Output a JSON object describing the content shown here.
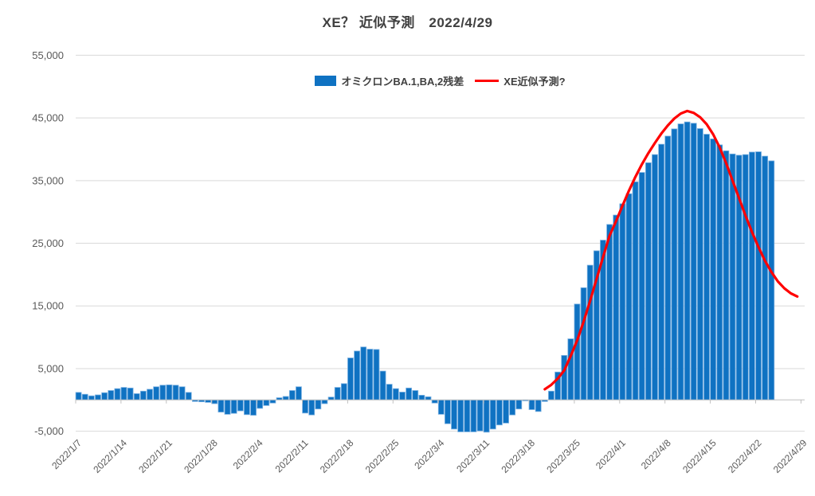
{
  "title": "XE？ 近似予測　2022/4/29",
  "legend": {
    "bar_label": "オミクロンBA.1,BA,2残差",
    "line_label": "XE近似予測?"
  },
  "colors": {
    "bar_fill": "#0F72C2",
    "bar_edge": "#7EB3E3",
    "forecast_line": "#FF0000",
    "gridline": "#D9D9D9",
    "axis_line": "#BFBFBF",
    "axis_text": "#595959",
    "title_text": "#404040",
    "background": "#FFFFFF"
  },
  "chart_data": {
    "type": "combo-bar-line",
    "grid": true,
    "legend_position": "top-center",
    "ylim": [
      -5000,
      55000
    ],
    "ytick_step": 10000,
    "y_ticks": {
      "values": [
        55000,
        45000,
        35000,
        25000,
        15000,
        5000,
        -5000
      ],
      "labels": [
        "55,000",
        "45,000",
        "35,000",
        "25,000",
        "15,000",
        "5,000",
        "-5,000"
      ]
    },
    "x_tick_every": 7,
    "x_tick_labels": [
      "2022/1/7",
      "2022/1/14",
      "2022/1/21",
      "2022/1/28",
      "2022/2/4",
      "2022/2/11",
      "2022/2/18",
      "2022/2/25",
      "2022/3/4",
      "2022/3/11",
      "2022/3/18",
      "2022/3/25",
      "2022/4/1",
      "2022/4/8",
      "2022/4/15",
      "2022/4/22",
      "2022/4/29"
    ],
    "categories": [
      "2022/1/7",
      "2022/1/8",
      "2022/1/9",
      "2022/1/10",
      "2022/1/11",
      "2022/1/12",
      "2022/1/13",
      "2022/1/14",
      "2022/1/15",
      "2022/1/16",
      "2022/1/17",
      "2022/1/18",
      "2022/1/19",
      "2022/1/20",
      "2022/1/21",
      "2022/1/22",
      "2022/1/23",
      "2022/1/24",
      "2022/1/25",
      "2022/1/26",
      "2022/1/27",
      "2022/1/28",
      "2022/1/29",
      "2022/1/30",
      "2022/1/31",
      "2022/2/1",
      "2022/2/2",
      "2022/2/3",
      "2022/2/4",
      "2022/2/5",
      "2022/2/6",
      "2022/2/7",
      "2022/2/8",
      "2022/2/9",
      "2022/2/10",
      "2022/2/11",
      "2022/2/12",
      "2022/2/13",
      "2022/2/14",
      "2022/2/15",
      "2022/2/16",
      "2022/2/17",
      "2022/2/18",
      "2022/2/19",
      "2022/2/20",
      "2022/2/21",
      "2022/2/22",
      "2022/2/23",
      "2022/2/24",
      "2022/2/25",
      "2022/2/26",
      "2022/2/27",
      "2022/2/28",
      "2022/3/1",
      "2022/3/2",
      "2022/3/3",
      "2022/3/4",
      "2022/3/5",
      "2022/3/6",
      "2022/3/7",
      "2022/3/8",
      "2022/3/9",
      "2022/3/10",
      "2022/3/11",
      "2022/3/12",
      "2022/3/13",
      "2022/3/14",
      "2022/3/15",
      "2022/3/16",
      "2022/3/17",
      "2022/3/18",
      "2022/3/19",
      "2022/3/20",
      "2022/3/21",
      "2022/3/22",
      "2022/3/23",
      "2022/3/24",
      "2022/3/25",
      "2022/3/26",
      "2022/3/27",
      "2022/3/28",
      "2022/3/29",
      "2022/3/30",
      "2022/3/31",
      "2022/4/1",
      "2022/4/2",
      "2022/4/3",
      "2022/4/4",
      "2022/4/5",
      "2022/4/6",
      "2022/4/7",
      "2022/4/8",
      "2022/4/9",
      "2022/4/10",
      "2022/4/11",
      "2022/4/12",
      "2022/4/13",
      "2022/4/14",
      "2022/4/15",
      "2022/4/16",
      "2022/4/17",
      "2022/4/18",
      "2022/4/19",
      "2022/4/20",
      "2022/4/21",
      "2022/4/22",
      "2022/4/23",
      "2022/4/24",
      "2022/4/25",
      "2022/4/26",
      "2022/4/27",
      "2022/4/28",
      "2022/4/29"
    ],
    "series": [
      {
        "name": "オミクロンBA.1,BA,2残差",
        "type": "bar",
        "color": "#0F72C2",
        "edge_color": "#7EB3E3",
        "start_index": 0,
        "values": [
          1200,
          900,
          650,
          800,
          1150,
          1500,
          1800,
          2000,
          1900,
          1000,
          1400,
          1700,
          2100,
          2350,
          2400,
          2350,
          2100,
          1200,
          -250,
          -300,
          -400,
          -600,
          -1950,
          -2300,
          -2150,
          -1750,
          -2350,
          -2450,
          -1350,
          -900,
          -500,
          350,
          550,
          1500,
          2100,
          -2100,
          -2400,
          -1450,
          -600,
          450,
          2000,
          2600,
          6700,
          7800,
          8450,
          8100,
          8050,
          4600,
          2500,
          1800,
          1250,
          1900,
          1500,
          750,
          500,
          -500,
          -2300,
          -3800,
          -4650,
          -5100,
          -5100,
          -5100,
          -4950,
          -5150,
          -4650,
          -4000,
          -3700,
          -2400,
          -1450,
          -150,
          -1550,
          -1850,
          -250,
          1400,
          4450,
          7100,
          9750,
          15300,
          17900,
          21500,
          23800,
          25500,
          28000,
          29500,
          31300,
          32900,
          34800,
          36300,
          37850,
          39150,
          40800,
          42100,
          43250,
          44050,
          44360,
          44150,
          43300,
          42400,
          41650,
          40700,
          39750,
          39250,
          39050,
          39150,
          39550,
          39600,
          38900,
          38150,
          null,
          null,
          null,
          null,
          null
        ]
      },
      {
        "name": "XE近似予測?",
        "type": "line",
        "color": "#FF0000",
        "stroke_width": 3.2,
        "start_index": 72,
        "values": [
          1700,
          2400,
          3400,
          4700,
          7000,
          9500,
          12500,
          15800,
          19300,
          22800,
          26200,
          28500,
          31000,
          33400,
          35600,
          37600,
          39400,
          41000,
          42500,
          43800,
          44900,
          45700,
          46100,
          45800,
          45100,
          44000,
          42400,
          40300,
          37800,
          35000,
          32200,
          29400,
          26800,
          24400,
          22200,
          20400,
          18900,
          17800,
          17000,
          16500
        ]
      }
    ]
  }
}
